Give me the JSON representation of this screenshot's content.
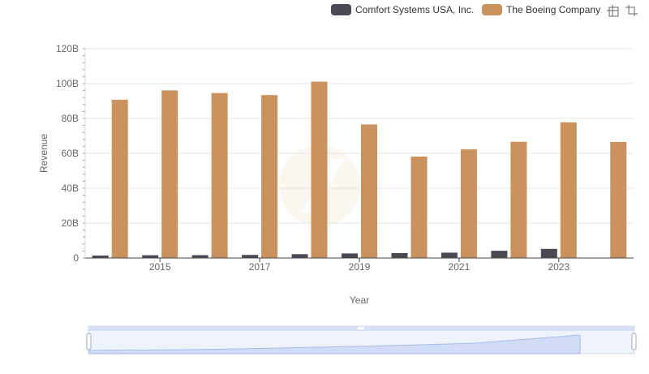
{
  "chart_data": {
    "type": "bar",
    "title": "",
    "xlabel": "Year",
    "ylabel": "Revenue",
    "ylim": [
      0,
      120000000000
    ],
    "y_ticks": [
      {
        "value": 0,
        "label": "0"
      },
      {
        "value": 20000000000,
        "label": "20B"
      },
      {
        "value": 40000000000,
        "label": "40B"
      },
      {
        "value": 60000000000,
        "label": "60B"
      },
      {
        "value": 80000000000,
        "label": "80B"
      },
      {
        "value": 100000000000,
        "label": "100B"
      },
      {
        "value": 120000000000,
        "label": "120B"
      }
    ],
    "categories": [
      "2014",
      "2015",
      "2016",
      "2017",
      "2018",
      "2019",
      "2020",
      "2021",
      "2022",
      "2023",
      "2024"
    ],
    "x_tick_labels": [
      "2015",
      "2017",
      "2019",
      "2021",
      "2023"
    ],
    "legend_position": "top-right",
    "series": [
      {
        "name": "Comfort Systems USA, Inc.",
        "color": "#4a4a55",
        "values": [
          1410000000,
          1580000000,
          1630000000,
          1790000000,
          2180000000,
          2620000000,
          2860000000,
          3070000000,
          4140000000,
          5210000000,
          null
        ]
      },
      {
        "name": "The Boeing Company",
        "color": "#c9925e",
        "values": [
          90760000000,
          96110000000,
          94570000000,
          93390000000,
          101130000000,
          76560000000,
          58160000000,
          62290000000,
          66610000000,
          77790000000,
          66520000000
        ]
      }
    ]
  },
  "toolbar": {
    "zoom_icon": "zoom-icon",
    "reset_icon": "reset-zoom-icon"
  },
  "datazoom": {
    "label": "slider-handle"
  }
}
